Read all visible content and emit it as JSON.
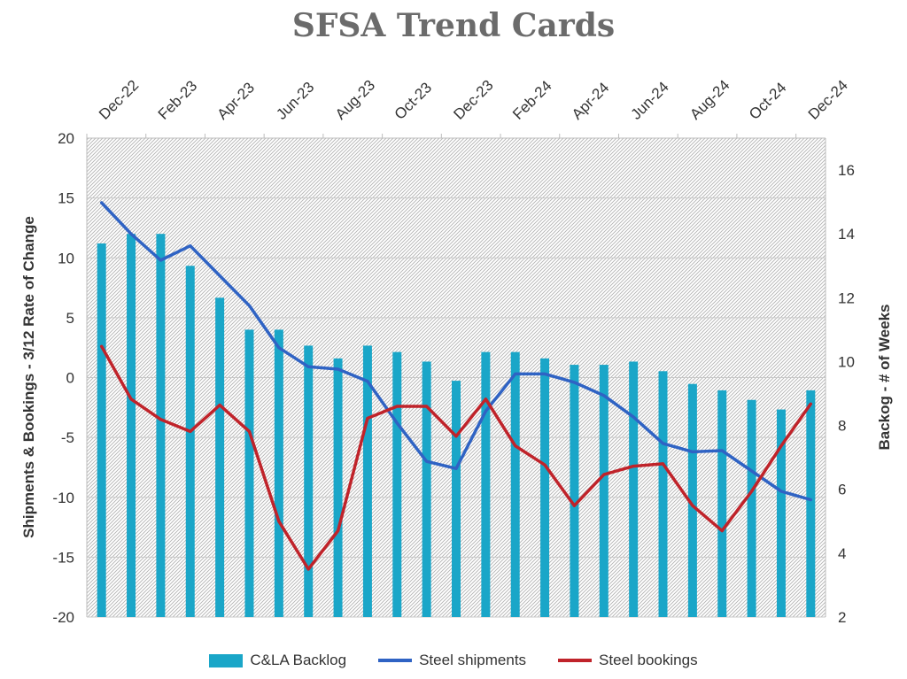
{
  "chart_data": {
    "type": "bar+line",
    "title": "SFSA Trend Cards",
    "x_tick_labels": [
      "Dec-22",
      "Feb-23",
      "Apr-23",
      "Jun-23",
      "Aug-23",
      "Oct-23",
      "Dec-23",
      "Feb-24",
      "Apr-24",
      "Jun-24",
      "Aug-24",
      "Oct-24",
      "Dec-24"
    ],
    "categories": [
      "Dec-22",
      "Jan-23",
      "Feb-23",
      "Mar-23",
      "Apr-23",
      "May-23",
      "Jun-23",
      "Jul-23",
      "Aug-23",
      "Sep-23",
      "Oct-23",
      "Nov-23",
      "Dec-23",
      "Jan-24",
      "Feb-24",
      "Mar-24",
      "Apr-24",
      "May-24",
      "Jun-24",
      "Jul-24",
      "Aug-24",
      "Sep-24",
      "Oct-24",
      "Nov-24",
      "Dec-24"
    ],
    "y_left": {
      "label": "Shipments & Bookings - 3/12  Rate of Change",
      "range": [
        -20,
        20
      ],
      "ticks": [
        -20,
        -15,
        -10,
        -5,
        0,
        5,
        10,
        15,
        20
      ]
    },
    "y_right": {
      "label": "Backog - # of Weeks",
      "range": [
        2,
        17
      ],
      "ticks": [
        2,
        4,
        6,
        8,
        10,
        12,
        14,
        16
      ]
    },
    "legend_position": "bottom",
    "series": [
      {
        "name": "C&LA Backlog",
        "type": "bar",
        "axis": "right",
        "color": "#1aa6c8",
        "values": [
          13.7,
          14.0,
          14.0,
          13.0,
          12.0,
          11.0,
          11.0,
          10.5,
          10.1,
          10.5,
          10.3,
          10.0,
          9.4,
          10.3,
          10.3,
          10.1,
          9.9,
          9.9,
          10.0,
          9.7,
          9.3,
          9.1,
          8.8,
          8.5,
          9.1
        ]
      },
      {
        "name": "Steel shipments",
        "type": "line",
        "axis": "left",
        "color": "#2f63c4",
        "values": [
          14.6,
          12.0,
          9.8,
          11.0,
          8.5,
          6.0,
          2.5,
          0.9,
          0.7,
          -0.3,
          -3.8,
          -7.0,
          -7.6,
          -2.8,
          0.3,
          0.3,
          -0.4,
          -1.5,
          -3.3,
          -5.5,
          -6.2,
          -6.1,
          -7.8,
          -9.5,
          -10.2
        ]
      },
      {
        "name": "Steel bookings",
        "type": "line",
        "axis": "left",
        "color": "#c0232a",
        "values": [
          2.6,
          -1.8,
          -3.5,
          -4.5,
          -2.3,
          -4.5,
          -12.0,
          -16.0,
          -12.8,
          -3.4,
          -2.4,
          -2.4,
          -4.9,
          -1.8,
          -5.7,
          -7.3,
          -10.7,
          -8.1,
          -7.4,
          -7.2,
          -10.7,
          -12.8,
          -9.5,
          -5.7,
          -2.2
        ]
      }
    ]
  }
}
